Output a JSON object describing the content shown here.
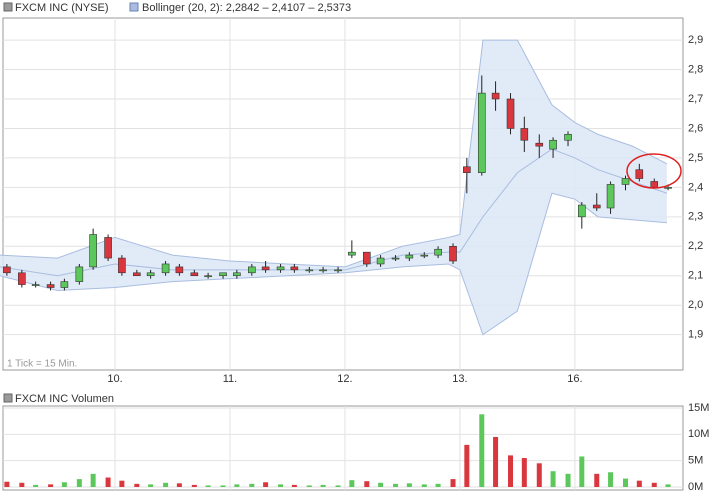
{
  "chart_data": [
    {
      "type": "candlestick",
      "name": "FXCM INC (NYSE)",
      "annotation": "1 Tick = 15 Min.",
      "x": [
        0.06,
        0.19,
        0.31,
        0.44,
        0.56,
        0.69,
        0.81,
        0.94,
        1.06,
        1.19,
        1.31,
        1.44,
        1.56,
        1.69,
        1.81,
        1.94,
        2.06,
        2.19,
        2.31,
        2.44,
        2.56,
        2.69,
        2.81,
        2.94,
        3.06,
        3.19,
        3.31,
        3.44,
        3.56,
        3.69,
        3.81,
        3.94,
        4.06,
        4.19,
        4.31,
        4.44,
        4.56,
        4.69,
        4.81,
        4.94,
        5.06,
        5.19,
        5.31,
        5.44,
        5.56,
        5.69,
        5.81
      ],
      "open": [
        2.13,
        2.11,
        2.07,
        2.07,
        2.06,
        2.08,
        2.13,
        2.23,
        2.16,
        2.11,
        2.1,
        2.11,
        2.13,
        2.11,
        2.1,
        2.1,
        2.1,
        2.11,
        2.13,
        2.12,
        2.13,
        2.12,
        2.12,
        2.12,
        2.17,
        2.18,
        2.14,
        2.16,
        2.16,
        2.17,
        2.17,
        2.2,
        2.47,
        2.45,
        2.72,
        2.7,
        2.6,
        2.55,
        2.53,
        2.56,
        2.3,
        2.34,
        2.33,
        2.41,
        2.46,
        2.42,
        2.4
      ],
      "high": [
        2.14,
        2.12,
        2.08,
        2.08,
        2.09,
        2.14,
        2.26,
        2.24,
        2.17,
        2.12,
        2.12,
        2.15,
        2.14,
        2.12,
        2.11,
        2.11,
        2.12,
        2.14,
        2.15,
        2.14,
        2.14,
        2.13,
        2.13,
        2.13,
        2.22,
        2.18,
        2.17,
        2.17,
        2.18,
        2.18,
        2.2,
        2.21,
        2.5,
        2.78,
        2.76,
        2.72,
        2.64,
        2.58,
        2.57,
        2.59,
        2.35,
        2.38,
        2.42,
        2.44,
        2.48,
        2.43,
        2.41
      ],
      "low": [
        2.1,
        2.06,
        2.06,
        2.05,
        2.05,
        2.07,
        2.12,
        2.15,
        2.1,
        2.1,
        2.09,
        2.1,
        2.1,
        2.1,
        2.09,
        2.09,
        2.09,
        2.1,
        2.11,
        2.11,
        2.11,
        2.11,
        2.11,
        2.11,
        2.16,
        2.13,
        2.13,
        2.15,
        2.15,
        2.16,
        2.16,
        2.14,
        2.38,
        2.44,
        2.66,
        2.58,
        2.52,
        2.5,
        2.5,
        2.54,
        2.26,
        2.32,
        2.31,
        2.39,
        2.42,
        2.4,
        2.39
      ],
      "close": [
        2.11,
        2.07,
        2.07,
        2.06,
        2.08,
        2.13,
        2.24,
        2.16,
        2.11,
        2.1,
        2.11,
        2.14,
        2.11,
        2.1,
        2.1,
        2.11,
        2.11,
        2.13,
        2.12,
        2.13,
        2.12,
        2.12,
        2.12,
        2.12,
        2.18,
        2.14,
        2.16,
        2.16,
        2.17,
        2.17,
        2.19,
        2.15,
        2.45,
        2.72,
        2.7,
        2.6,
        2.56,
        2.54,
        2.56,
        2.58,
        2.34,
        2.33,
        2.41,
        2.43,
        2.43,
        2.4,
        2.4
      ],
      "up_color": "#5cc85c",
      "down_color": "#d9363e",
      "bollinger": {
        "name": "Bollinger (20, 2): 2,2842 – 2,4107 – 2,5373",
        "color": "#dce7f7",
        "line_color": "#a9bde0",
        "x": [
          0,
          0.5,
          1,
          1.5,
          2,
          2.5,
          3,
          3.5,
          3.9,
          4.0,
          4.2,
          4.5,
          4.8,
          5.0,
          5.2,
          5.5,
          5.8
        ],
        "upper": [
          2.17,
          2.16,
          2.23,
          2.17,
          2.15,
          2.14,
          2.13,
          2.2,
          2.23,
          2.24,
          2.9,
          2.9,
          2.68,
          2.62,
          2.58,
          2.54,
          2.48
        ],
        "middle": [
          2.13,
          2.1,
          2.14,
          2.12,
          2.12,
          2.12,
          2.12,
          2.17,
          2.18,
          2.18,
          2.3,
          2.45,
          2.53,
          2.5,
          2.46,
          2.42,
          2.38
        ],
        "lower": [
          2.1,
          2.05,
          2.06,
          2.08,
          2.09,
          2.1,
          2.11,
          2.13,
          2.14,
          2.12,
          1.9,
          1.98,
          2.38,
          2.36,
          2.3,
          2.29,
          2.28
        ]
      },
      "xlim": [
        0,
        5.94
      ],
      "xticks": [
        {
          "value": 1,
          "label": "10."
        },
        {
          "value": 2,
          "label": "11."
        },
        {
          "value": 3,
          "label": "12."
        },
        {
          "value": 4,
          "label": "13."
        },
        {
          "value": 5,
          "label": "16."
        }
      ],
      "ylim": [
        1.78,
        2.975
      ],
      "yticks": [
        {
          "value": 1.9,
          "label": "1,9"
        },
        {
          "value": 2.0,
          "label": "2,0"
        },
        {
          "value": 2.1,
          "label": "2,1"
        },
        {
          "value": 2.2,
          "label": "2,2"
        },
        {
          "value": 2.3,
          "label": "2,3"
        },
        {
          "value": 2.4,
          "label": "2,4"
        },
        {
          "value": 2.5,
          "label": "2,5"
        },
        {
          "value": 2.6,
          "label": "2,6"
        },
        {
          "value": 2.7,
          "label": "2,7"
        },
        {
          "value": 2.8,
          "label": "2,8"
        },
        {
          "value": 2.9,
          "label": "2,9"
        }
      ],
      "grid": true
    },
    {
      "type": "bar",
      "title": "FXCM INC Volumen",
      "values": [
        1000000,
        800000,
        400000,
        500000,
        900000,
        1500000,
        2500000,
        1800000,
        1200000,
        600000,
        500000,
        800000,
        700000,
        400000,
        300000,
        300000,
        500000,
        600000,
        900000,
        500000,
        400000,
        300000,
        400000,
        300000,
        1300000,
        1100000,
        800000,
        600000,
        700000,
        500000,
        600000,
        1500000,
        8000000,
        13800000,
        9500000,
        6000000,
        5500000,
        4500000,
        3000000,
        2500000,
        5800000,
        2500000,
        2800000,
        1600000,
        1200000,
        800000,
        500000
      ],
      "ylim": [
        0,
        15000000
      ],
      "yticks": [
        {
          "value": 0,
          "label": "0M"
        },
        {
          "value": 5000000,
          "label": "5M"
        },
        {
          "value": 10000000,
          "label": "10M"
        },
        {
          "value": 15000000,
          "label": "15M"
        }
      ],
      "grid": true
    }
  ]
}
